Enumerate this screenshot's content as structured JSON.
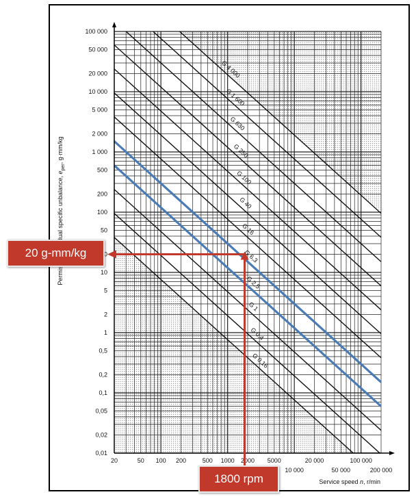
{
  "chart_data": {
    "type": "line",
    "title": "",
    "ylabel_prefix": "Permissible residual specific unbalance, ",
    "ylabel_symbol": "e",
    "ylabel_sub": "per",
    "ylabel_suffix": ", g·mm/kg",
    "xlabel_prefix": "Service speed ",
    "xlabel_symbol": "n",
    "xlabel_suffix": ", r/min",
    "x_scale": "log",
    "y_scale": "log",
    "xlim": [
      20,
      200000
    ],
    "ylim": [
      0.01,
      100000
    ],
    "x_ticks": [
      {
        "v": 20,
        "label": "20"
      },
      {
        "v": 50,
        "label": "50"
      },
      {
        "v": 100,
        "label": "100"
      },
      {
        "v": 200,
        "label": "200"
      },
      {
        "v": 500,
        "label": "500"
      },
      {
        "v": 1000,
        "label": "1000"
      },
      {
        "v": 2000,
        "label": "2000"
      },
      {
        "v": 5000,
        "label": "5000"
      },
      {
        "v": 10000,
        "label": "10 000"
      },
      {
        "v": 20000,
        "label": "20 000"
      },
      {
        "v": 50000,
        "label": "50 000"
      },
      {
        "v": 100000,
        "label": "100 000"
      },
      {
        "v": 200000,
        "label": "200 000"
      }
    ],
    "y_ticks": [
      {
        "v": 100000,
        "label": "100 000"
      },
      {
        "v": 50000,
        "label": "50 000"
      },
      {
        "v": 20000,
        "label": "20 000"
      },
      {
        "v": 10000,
        "label": "10 000"
      },
      {
        "v": 5000,
        "label": "5 000"
      },
      {
        "v": 2000,
        "label": "2 000"
      },
      {
        "v": 1000,
        "label": "1 000"
      },
      {
        "v": 500,
        "label": "500"
      },
      {
        "v": 200,
        "label": "200"
      },
      {
        "v": 100,
        "label": "100"
      },
      {
        "v": 50,
        "label": "50"
      },
      {
        "v": 20,
        "label": "20"
      },
      {
        "v": 10,
        "label": "10"
      },
      {
        "v": 5,
        "label": "5"
      },
      {
        "v": 2,
        "label": "2"
      },
      {
        "v": 1,
        "label": "1"
      },
      {
        "v": 0.5,
        "label": "0,5"
      },
      {
        "v": 0.2,
        "label": "0,2"
      },
      {
        "v": 0.1,
        "label": "0,1"
      },
      {
        "v": 0.05,
        "label": "0,05"
      },
      {
        "v": 0.02,
        "label": "0,02"
      },
      {
        "v": 0.01,
        "label": "0,01"
      }
    ],
    "grades": [
      {
        "name": "G 4 000",
        "g": 4000
      },
      {
        "name": "G 1 600",
        "g": 1600
      },
      {
        "name": "G 630",
        "g": 630
      },
      {
        "name": "G 250",
        "g": 250
      },
      {
        "name": "G 100",
        "g": 100
      },
      {
        "name": "G 40",
        "g": 40
      },
      {
        "name": "G 16",
        "g": 16
      },
      {
        "name": "G 6,3",
        "g": 6.3
      },
      {
        "name": "G 2,5",
        "g": 2.5
      },
      {
        "name": "G 1",
        "g": 1
      },
      {
        "name": "G 0,4",
        "g": 0.4
      },
      {
        "name": "G 0,16",
        "g": 0.16
      }
    ],
    "highlight_series": [
      {
        "name": "G 6,3 band",
        "g": 6.3,
        "color": "#4a7bb5"
      },
      {
        "name": "G 2,5 band",
        "g": 2.5,
        "color": "#4a7bb5"
      }
    ],
    "annotation": {
      "speed_rpm": 1800,
      "unbalance": 20,
      "arrow_color": "#c0392b",
      "speed_label": "1800 rpm",
      "unbalance_label": "20 g-mm/kg"
    }
  }
}
